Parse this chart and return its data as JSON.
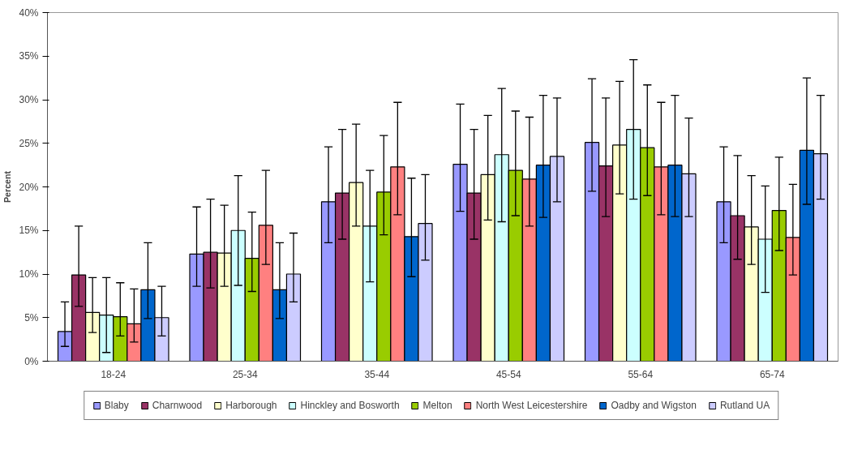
{
  "chart_data": {
    "type": "bar",
    "ylabel": "Percent",
    "categories": [
      "18-24",
      "25-34",
      "35-44",
      "45-54",
      "55-64",
      "65-74"
    ],
    "ylim": [
      0,
      40
    ],
    "yticks": [
      {
        "value": 0,
        "label": "0%"
      },
      {
        "value": 5,
        "label": "5%"
      },
      {
        "value": 10,
        "label": "10%"
      },
      {
        "value": 15,
        "label": "15%"
      },
      {
        "value": 20,
        "label": "20%"
      },
      {
        "value": 25,
        "label": "25%"
      },
      {
        "value": 30,
        "label": "30%"
      },
      {
        "value": 35,
        "label": "35%"
      },
      {
        "value": 40,
        "label": "40%"
      }
    ],
    "grid": false,
    "legend": "bottom",
    "series": [
      {
        "name": "Blaby",
        "color": "#9999ff",
        "values": [
          3.4,
          12.3,
          18.3,
          22.6,
          25.1,
          18.3
        ],
        "errors": [
          [
            1.7,
            6.8
          ],
          [
            8.6,
            17.7
          ],
          [
            13.6,
            24.6
          ],
          [
            17.2,
            29.5
          ],
          [
            19.5,
            32.4
          ],
          [
            13.6,
            24.6
          ]
        ]
      },
      {
        "name": "Charnwood",
        "color": "#993366",
        "values": [
          9.9,
          12.5,
          19.3,
          19.3,
          22.4,
          16.7
        ],
        "errors": [
          [
            6.3,
            15.5
          ],
          [
            8.4,
            18.6
          ],
          [
            14.0,
            26.6
          ],
          [
            14.0,
            26.6
          ],
          [
            16.6,
            30.2
          ],
          [
            11.7,
            23.6
          ]
        ]
      },
      {
        "name": "Harborough",
        "color": "#ffffcc",
        "values": [
          5.6,
          12.4,
          20.5,
          21.4,
          24.8,
          15.4
        ],
        "errors": [
          [
            3.3,
            9.6
          ],
          [
            8.6,
            17.9
          ],
          [
            15.5,
            27.2
          ],
          [
            16.2,
            28.2
          ],
          [
            19.2,
            32.1
          ],
          [
            11.1,
            21.3
          ]
        ]
      },
      {
        "name": "Hinckley and Bosworth",
        "color": "#ccffff",
        "values": [
          5.3,
          15.0,
          15.5,
          23.7,
          26.6,
          14.0
        ],
        "errors": [
          [
            1.0,
            9.6
          ],
          [
            8.7,
            21.3
          ],
          [
            9.1,
            21.9
          ],
          [
            16.0,
            31.3
          ],
          [
            18.6,
            34.6
          ],
          [
            7.9,
            20.1
          ]
        ]
      },
      {
        "name": "Melton",
        "color": "#99cc00",
        "values": [
          5.1,
          11.8,
          19.4,
          21.9,
          24.5,
          17.3
        ],
        "errors": [
          [
            2.9,
            9.0
          ],
          [
            8.0,
            17.1
          ],
          [
            14.5,
            25.9
          ],
          [
            16.7,
            28.7
          ],
          [
            19.0,
            31.7
          ],
          [
            12.7,
            23.4
          ]
        ]
      },
      {
        "name": "North West Leicestershire",
        "color": "#ff8080",
        "values": [
          4.3,
          15.6,
          22.3,
          20.9,
          22.3,
          14.2
        ],
        "errors": [
          [
            2.2,
            8.3
          ],
          [
            11.1,
            21.9
          ],
          [
            16.8,
            29.7
          ],
          [
            15.5,
            28.0
          ],
          [
            16.8,
            29.7
          ],
          [
            9.9,
            20.3
          ]
        ]
      },
      {
        "name": "Oadby and Wigston",
        "color": "#0066cc",
        "values": [
          8.2,
          8.2,
          14.3,
          22.5,
          22.5,
          24.2
        ],
        "errors": [
          [
            4.9,
            13.6
          ],
          [
            4.9,
            13.6
          ],
          [
            9.7,
            21.0
          ],
          [
            16.5,
            30.5
          ],
          [
            16.6,
            30.5
          ],
          [
            18.0,
            32.5
          ]
        ]
      },
      {
        "name": "Rutland UA",
        "color": "#ccccff",
        "values": [
          5.0,
          10.0,
          15.8,
          23.5,
          21.5,
          23.8
        ],
        "errors": [
          [
            2.9,
            8.6
          ],
          [
            6.8,
            14.7
          ],
          [
            11.6,
            21.4
          ],
          [
            18.3,
            30.2
          ],
          [
            16.6,
            27.9
          ],
          [
            18.6,
            30.5
          ]
        ]
      }
    ]
  }
}
